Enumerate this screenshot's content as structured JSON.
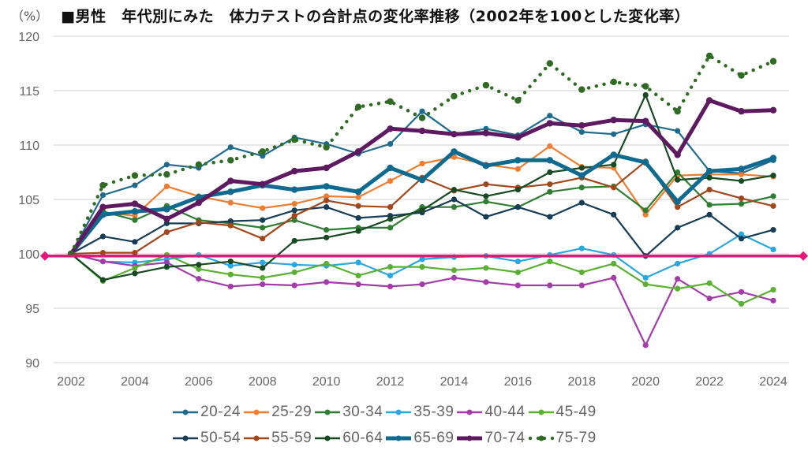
{
  "header": {
    "unit_label": "（%）",
    "title": "■男性　年代別にみた　体力テストの合計点の変化率推移（2002年を100とした変化率）"
  },
  "chart_data": {
    "type": "line",
    "title": "■男性　年代別にみた　体力テストの合計点の変化率推移（2002年を100とした変化率）",
    "ylabel": "（%）",
    "xlabel": "",
    "ylim": [
      90,
      120
    ],
    "yticks": [
      90,
      95,
      100,
      105,
      110,
      115,
      120
    ],
    "xticks": [
      "2002",
      "2004",
      "2006",
      "2008",
      "2010",
      "2012",
      "2014",
      "2016",
      "2018",
      "2020",
      "2022",
      "2024"
    ],
    "grid": "horizontal",
    "legend_position": "bottom",
    "x": [
      2002,
      2003,
      2004,
      2005,
      2006,
      2007,
      2008,
      2009,
      2010,
      2011,
      2012,
      2013,
      2014,
      2015,
      2016,
      2017,
      2018,
      2019,
      2020,
      2021,
      2022,
      2023,
      2024
    ],
    "reference_line": {
      "value": 99.8,
      "color": "#e6157a",
      "marker": "diamond"
    },
    "series": [
      {
        "name": "20-24",
        "color": "#1f6b8e",
        "style": "solid",
        "weight": "normal",
        "values": [
          100,
          105.4,
          106.3,
          108.2,
          107.9,
          109.8,
          109.0,
          110.7,
          110.1,
          109.2,
          110.1,
          113.1,
          111.0,
          111.5,
          110.9,
          112.7,
          111.2,
          111.0,
          111.9,
          111.3,
          107.6,
          107.4,
          108.6
        ]
      },
      {
        "name": "25-29",
        "color": "#ed7d31",
        "style": "solid",
        "weight": "normal",
        "values": [
          100,
          103.8,
          103.5,
          106.2,
          105.3,
          104.7,
          104.2,
          104.6,
          105.3,
          105.2,
          106.7,
          108.3,
          108.9,
          108.2,
          107.8,
          109.9,
          108.0,
          107.9,
          103.6,
          107.2,
          107.3,
          107.3,
          107.1
        ]
      },
      {
        "name": "30-34",
        "color": "#2e7d32",
        "style": "solid",
        "weight": "normal",
        "values": [
          100,
          103.9,
          103.1,
          104.4,
          103.1,
          102.8,
          102.4,
          103.1,
          102.2,
          102.4,
          102.4,
          104.3,
          104.3,
          104.8,
          104.3,
          105.7,
          106.1,
          106.2,
          104.0,
          107.5,
          104.5,
          104.6,
          105.3
        ]
      },
      {
        "name": "35-39",
        "color": "#29a8e0",
        "style": "solid",
        "weight": "normal",
        "values": [
          100,
          99.3,
          99.2,
          99.5,
          99.9,
          98.9,
          99.2,
          99.0,
          98.9,
          99.2,
          98.0,
          99.5,
          99.7,
          99.8,
          99.3,
          99.9,
          100.5,
          99.9,
          97.8,
          99.1,
          100.0,
          101.8,
          100.4
        ]
      },
      {
        "name": "40-44",
        "color": "#a23ca8",
        "style": "solid",
        "weight": "normal",
        "values": [
          100,
          99.3,
          98.9,
          99.2,
          97.7,
          97.0,
          97.2,
          97.1,
          97.4,
          97.2,
          97.0,
          97.2,
          97.8,
          97.4,
          97.1,
          97.1,
          97.1,
          97.8,
          91.6,
          97.7,
          95.9,
          96.5,
          95.7
        ]
      },
      {
        "name": "45-49",
        "color": "#5ab034",
        "style": "solid",
        "weight": "normal",
        "values": [
          100,
          97.5,
          98.7,
          99.9,
          98.6,
          98.1,
          97.8,
          98.3,
          99.1,
          98.0,
          98.8,
          98.8,
          98.5,
          98.7,
          98.3,
          99.3,
          98.3,
          99.1,
          97.2,
          96.8,
          97.3,
          95.4,
          96.7
        ]
      },
      {
        "name": "50-54",
        "color": "#163c56",
        "style": "solid",
        "weight": "normal",
        "values": [
          100,
          101.6,
          101.1,
          102.8,
          102.8,
          103.0,
          103.1,
          104.0,
          104.3,
          103.3,
          103.5,
          103.8,
          105.0,
          103.4,
          104.3,
          103.4,
          104.7,
          103.6,
          99.8,
          102.4,
          103.6,
          101.4,
          102.2
        ]
      },
      {
        "name": "55-59",
        "color": "#a0471c",
        "style": "solid",
        "weight": "normal",
        "values": [
          100,
          100.1,
          100.1,
          102.0,
          102.9,
          102.6,
          101.4,
          103.5,
          104.9,
          104.4,
          104.3,
          107.0,
          105.8,
          106.4,
          106.1,
          106.4,
          107.0,
          106.1,
          108.5,
          104.3,
          105.9,
          105.1,
          104.4
        ]
      },
      {
        "name": "60-64",
        "color": "#174a22",
        "style": "solid",
        "weight": "normal",
        "values": [
          100,
          97.6,
          98.2,
          98.8,
          99.0,
          99.3,
          98.7,
          101.2,
          101.5,
          102.1,
          103.2,
          104.0,
          105.9,
          105.3,
          105.9,
          107.5,
          107.9,
          108.2,
          114.6,
          106.8,
          107.0,
          106.7,
          107.2
        ]
      },
      {
        "name": "65-69",
        "color": "#0e6b8f",
        "style": "solid",
        "weight": "thick",
        "values": [
          100,
          103.6,
          103.9,
          104.1,
          105.2,
          105.7,
          106.3,
          105.9,
          106.2,
          105.7,
          107.9,
          106.8,
          109.4,
          108.1,
          108.6,
          108.6,
          107.2,
          109.1,
          108.4,
          104.8,
          107.6,
          107.8,
          108.8
        ]
      },
      {
        "name": "70-74",
        "color": "#5e1a60",
        "style": "solid",
        "weight": "thick",
        "values": [
          100,
          104.3,
          104.6,
          103.2,
          104.7,
          106.7,
          106.4,
          107.6,
          107.9,
          109.4,
          111.5,
          111.3,
          111.0,
          111.1,
          110.7,
          112.0,
          111.8,
          112.3,
          112.2,
          109.1,
          114.1,
          113.1,
          113.2
        ]
      },
      {
        "name": "75-79",
        "color": "#2f6b22",
        "style": "dotted",
        "weight": "normal",
        "values": [
          100,
          106.3,
          107.2,
          107.3,
          108.2,
          108.6,
          109.4,
          110.5,
          109.8,
          113.5,
          114.0,
          112.5,
          114.5,
          115.5,
          114.1,
          117.5,
          115.1,
          115.8,
          115.4,
          113.1,
          118.2,
          116.4,
          117.7
        ]
      }
    ]
  },
  "legend": {
    "rows": [
      [
        "20-24",
        "25-29",
        "30-34",
        "35-39",
        "40-44",
        "45-49"
      ],
      [
        "50-54",
        "55-59",
        "60-64",
        "65-69",
        "70-74",
        "75-79"
      ]
    ]
  }
}
